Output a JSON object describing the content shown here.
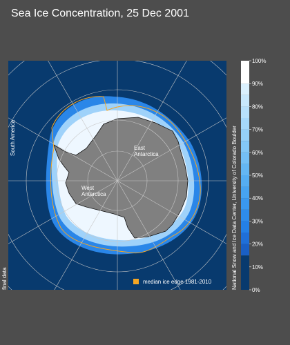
{
  "title": "Sea Ice Concentration, 25 Dec 2001",
  "map": {
    "labels": {
      "south_america": "South America",
      "east_antarctica": "East Antarctica",
      "west_antarctica": "West Antarctica",
      "final_data": "final data"
    },
    "legend": {
      "label": "median ice edge 1981-2010",
      "color": "#f5a623"
    },
    "credit": "National Snow and Ice Data Center, University of Colorado Boulder"
  },
  "colorbar": {
    "lim": [
      0,
      100
    ],
    "ticks": [
      {
        "value": 0,
        "label": "0%"
      },
      {
        "value": 10,
        "label": "10%"
      },
      {
        "value": 20,
        "label": "20%"
      },
      {
        "value": 30,
        "label": "30%"
      },
      {
        "value": 40,
        "label": "40%"
      },
      {
        "value": 50,
        "label": "50%"
      },
      {
        "value": 60,
        "label": "60%"
      },
      {
        "value": 70,
        "label": "70%"
      },
      {
        "value": 80,
        "label": "80%"
      },
      {
        "value": 90,
        "label": "90%"
      },
      {
        "value": 100,
        "label": "100%"
      }
    ],
    "edges": [
      0,
      15,
      20,
      25,
      30,
      35,
      40,
      45,
      50,
      55,
      60,
      65,
      70,
      75,
      80,
      85,
      90,
      100
    ],
    "colors": [
      "#083a6e",
      "#1a5fc4",
      "#1f6fd8",
      "#2480e6",
      "#2e8cec",
      "#3a98ef",
      "#47a3f1",
      "#55adf3",
      "#64b6f4",
      "#74bff6",
      "#84c8f7",
      "#95d0f8",
      "#a6d8fa",
      "#b7e0fb",
      "#c8e8fc",
      "#daf0fd",
      "#ffffff"
    ]
  }
}
